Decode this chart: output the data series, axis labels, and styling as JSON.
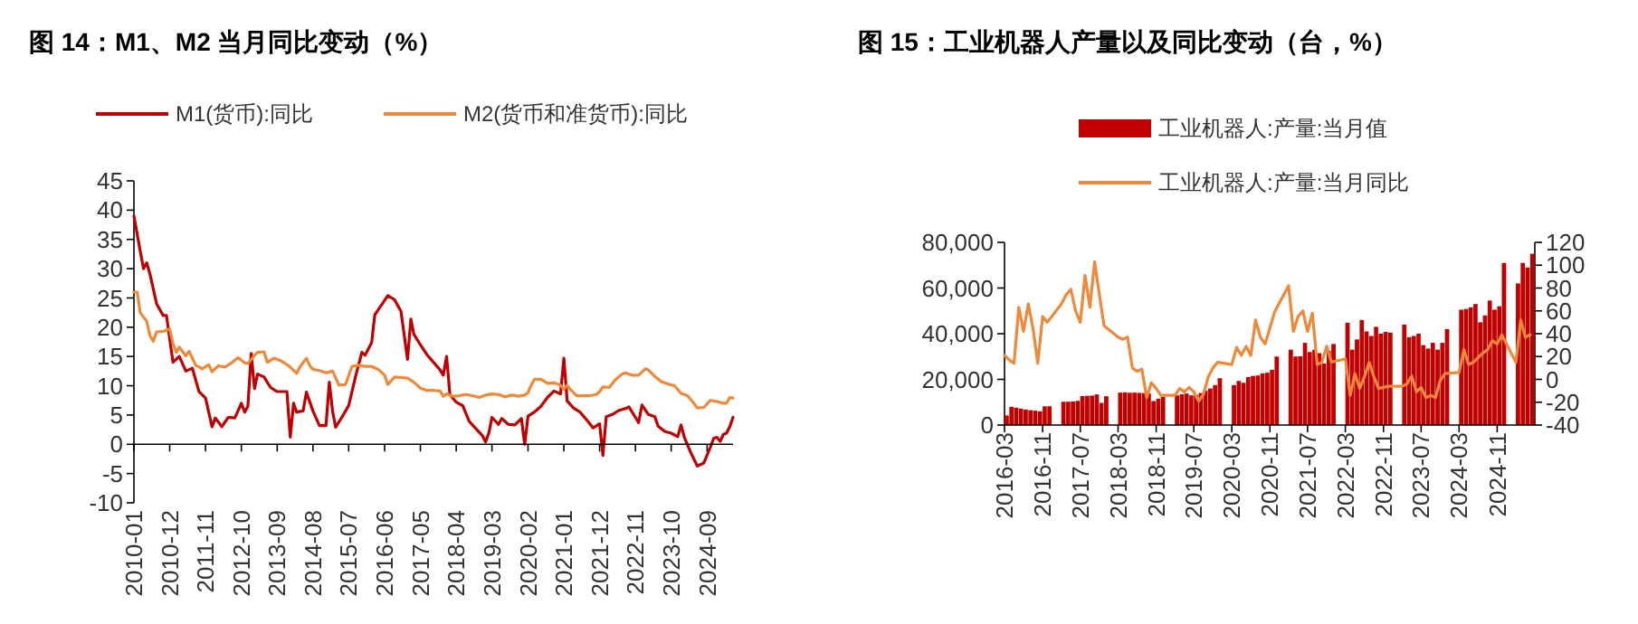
{
  "chart_data": [
    {
      "type": "line",
      "title": "图 14：M1、M2 当月同比变动（%）",
      "legend": "top",
      "xlim": [
        "2010-01",
        "2025-05"
      ],
      "xticks": [
        "2010-01",
        "2010-12",
        "2011-11",
        "2012-10",
        "2013-09",
        "2014-08",
        "2015-07",
        "2016-06",
        "2017-05",
        "2018-04",
        "2019-03",
        "2020-02",
        "2021-01",
        "2021-12",
        "2022-11",
        "2023-10",
        "2024-09"
      ],
      "ylim": [
        -10,
        45
      ],
      "yticks": [
        -10,
        -5,
        0,
        5,
        10,
        15,
        20,
        25,
        30,
        35,
        40,
        45
      ],
      "series": [
        {
          "name": "M1(货币):同比",
          "color": "#c00000",
          "x": [
            "2010-01",
            "2010-03",
            "2010-04",
            "2010-05",
            "2010-06",
            "2010-08",
            "2010-10",
            "2010-11",
            "2011-01",
            "2011-03",
            "2011-05",
            "2011-07",
            "2011-09",
            "2011-11",
            "2012-01",
            "2012-02",
            "2012-04",
            "2012-06",
            "2012-08",
            "2012-10",
            "2012-11",
            "2012-12",
            "2013-01",
            "2013-02",
            "2013-03",
            "2013-05",
            "2013-07",
            "2013-09",
            "2013-10",
            "2013-12",
            "2014-01",
            "2014-02",
            "2014-03",
            "2014-05",
            "2014-06",
            "2014-08",
            "2014-10",
            "2014-12",
            "2015-01",
            "2015-02",
            "2015-03",
            "2015-05",
            "2015-07",
            "2015-09",
            "2015-11",
            "2015-12",
            "2016-02",
            "2016-03",
            "2016-06",
            "2016-07",
            "2016-09",
            "2016-11",
            "2017-01",
            "2017-02",
            "2017-03",
            "2017-05",
            "2017-07",
            "2017-09",
            "2017-11",
            "2017-12",
            "2018-01",
            "2018-02",
            "2018-04",
            "2018-06",
            "2018-08",
            "2018-10",
            "2018-12",
            "2019-01",
            "2019-02",
            "2019-03",
            "2019-05",
            "2019-06",
            "2019-08",
            "2019-10",
            "2019-12",
            "2020-01",
            "2020-02",
            "2020-04",
            "2020-06",
            "2020-08",
            "2020-10",
            "2020-12",
            "2021-01",
            "2021-02",
            "2021-04",
            "2021-06",
            "2021-08",
            "2021-10",
            "2021-12",
            "2022-01",
            "2022-02",
            "2022-04",
            "2022-06",
            "2022-08",
            "2022-09",
            "2022-11",
            "2022-12",
            "2023-01",
            "2023-03",
            "2023-05",
            "2023-06",
            "2023-08",
            "2023-10",
            "2023-12",
            "2024-01",
            "2024-02",
            "2024-04",
            "2024-06",
            "2024-08",
            "2024-10",
            "2024-11",
            "2024-12",
            "2025-01",
            "2025-02",
            "2025-03",
            "2025-04",
            "2025-05"
          ],
          "values": [
            39,
            33,
            30,
            31,
            29,
            24,
            22,
            22,
            14,
            15,
            12.5,
            13,
            9,
            7.9,
            3,
            4.5,
            3,
            4.6,
            4.5,
            7,
            5.5,
            6.5,
            15.5,
            9.5,
            12,
            11.5,
            9.7,
            9,
            9,
            9,
            1.2,
            7,
            5.5,
            5.7,
            8.9,
            5.7,
            3.2,
            3.2,
            10.6,
            5.6,
            2.9,
            4.7,
            6.6,
            11.4,
            15.7,
            15.2,
            17.4,
            22.1,
            24.6,
            25.4,
            24.7,
            22.7,
            14.5,
            21.4,
            18.8,
            17,
            15.3,
            14,
            12.7,
            11.8,
            15,
            8.5,
            7.2,
            6.6,
            3.9,
            2.7,
            1.5,
            0.4,
            2,
            4.6,
            3.4,
            4.4,
            3.4,
            3.3,
            4.4,
            0,
            4.8,
            5.5,
            6.5,
            8,
            9.1,
            8.6,
            14.7,
            7.4,
            6.2,
            5.5,
            4.2,
            2.8,
            3.5,
            -1.9,
            4.7,
            5.1,
            5.8,
            6.1,
            6.4,
            4.6,
            3.7,
            6.7,
            5.1,
            4.7,
            3.1,
            2.2,
            1.9,
            1.3,
            3.3,
            1.2,
            -1.4,
            -3.7,
            -3.2,
            -0.5,
            1,
            1.2,
            0.5,
            1.7,
            1.9,
            3,
            4.6
          ]
        },
        {
          "name": "M2(货币和准货币):同比",
          "color": "#f0883a",
          "x": [
            "2010-01",
            "2010-02",
            "2010-03",
            "2010-05",
            "2010-06",
            "2010-07",
            "2010-08",
            "2010-10",
            "2010-11",
            "2010-12",
            "2011-01",
            "2011-02",
            "2011-03",
            "2011-05",
            "2011-06",
            "2011-08",
            "2011-10",
            "2011-12",
            "2012-01",
            "2012-03",
            "2012-05",
            "2012-07",
            "2012-09",
            "2012-11",
            "2012-12",
            "2013-02",
            "2013-03",
            "2013-05",
            "2013-06",
            "2013-08",
            "2013-10",
            "2013-12",
            "2014-01",
            "2014-03",
            "2014-04",
            "2014-06",
            "2014-07",
            "2014-08",
            "2014-10",
            "2014-12",
            "2015-02",
            "2015-04",
            "2015-06",
            "2015-08",
            "2015-10",
            "2015-12",
            "2016-02",
            "2016-04",
            "2016-06",
            "2016-07",
            "2016-09",
            "2016-11",
            "2017-01",
            "2017-03",
            "2017-05",
            "2017-07",
            "2017-09",
            "2017-11",
            "2017-12",
            "2018-01",
            "2018-03",
            "2018-05",
            "2018-07",
            "2018-09",
            "2018-11",
            "2019-01",
            "2019-03",
            "2019-05",
            "2019-07",
            "2019-09",
            "2019-11",
            "2020-01",
            "2020-02",
            "2020-03",
            "2020-04",
            "2020-06",
            "2020-08",
            "2020-10",
            "2020-12",
            "2021-01",
            "2021-02",
            "2021-03",
            "2021-05",
            "2021-07",
            "2021-09",
            "2021-11",
            "2021-12",
            "2022-01",
            "2022-03",
            "2022-05",
            "2022-07",
            "2022-08",
            "2022-10",
            "2022-12",
            "2023-02",
            "2023-03",
            "2023-05",
            "2023-07",
            "2023-09",
            "2023-11",
            "2024-01",
            "2024-03",
            "2024-05",
            "2024-06",
            "2024-08",
            "2024-10",
            "2024-12",
            "2025-02",
            "2025-03",
            "2025-04",
            "2025-05"
          ],
          "values": [
            26,
            26,
            22.5,
            21,
            18.5,
            17.6,
            19.2,
            19.3,
            19.5,
            19.7,
            17.2,
            15.7,
            16.6,
            15.1,
            15.9,
            13.5,
            12.9,
            13.6,
            12.4,
            13.4,
            13.2,
            13.9,
            14.8,
            13.9,
            13.8,
            15.2,
            15.7,
            15.8,
            14,
            14.7,
            14.3,
            13.6,
            13.2,
            12.1,
            13.2,
            14.7,
            13.5,
            12.8,
            12.6,
            12.2,
            12.5,
            10.1,
            10.2,
            13.3,
            13.5,
            13.3,
            13.3,
            12.8,
            11.8,
            10.2,
            11.5,
            11.4,
            11.3,
            10.6,
            9.6,
            9.2,
            9.2,
            9.1,
            8.2,
            8.6,
            8.2,
            8.3,
            8.5,
            8.3,
            8,
            8.4,
            8.6,
            8.5,
            8.1,
            8.4,
            8.2,
            8.4,
            8.8,
            10.1,
            11.1,
            11.1,
            10.4,
            10.5,
            10.1,
            9.4,
            10.1,
            9.4,
            8.3,
            8.3,
            8.3,
            8.5,
            9,
            9.8,
            9.7,
            11.1,
            12,
            12.2,
            11.8,
            11.8,
            12.9,
            12.7,
            11.6,
            10.7,
            10.3,
            10,
            8.7,
            8.3,
            7,
            6.2,
            6.3,
            7.5,
            7.3,
            7,
            7,
            8,
            7.9
          ]
        }
      ]
    },
    {
      "type": "bar",
      "title": "图 15：工业机器人产量以及同比变动（台，%）",
      "legend": "top",
      "xlim": [
        "2016-03",
        "2025-07"
      ],
      "xticks": [
        "2016-03",
        "2016-11",
        "2017-07",
        "2018-03",
        "2018-11",
        "2019-07",
        "2020-03",
        "2020-11",
        "2021-07",
        "2022-03",
        "2022-11",
        "2023-07",
        "2024-03",
        "2024-11"
      ],
      "ylim": [
        0,
        80000
      ],
      "yticks": [
        0,
        {
          "value": 20000,
          "label": "20,000"
        },
        {
          "value": 40000,
          "label": "40,000"
        },
        {
          "value": 60000,
          "label": "60,000"
        },
        {
          "value": 80000,
          "label": "80,000"
        }
      ],
      "y2lim": [
        -40,
        120
      ],
      "y2ticks": [
        -40,
        -20,
        0,
        20,
        40,
        60,
        80,
        100,
        120
      ],
      "series": [
        {
          "name": "工业机器人:产量:当月值",
          "color": "#c00000",
          "x": [
            "2016-03",
            "2016-04",
            "2016-05",
            "2016-06",
            "2016-07",
            "2016-08",
            "2016-09",
            "2016-10",
            "2016-11",
            "2016-12",
            "2017-03",
            "2017-04",
            "2017-05",
            "2017-06",
            "2017-07",
            "2017-08",
            "2017-09",
            "2017-10",
            "2017-11",
            "2017-12",
            "2018-03",
            "2018-04",
            "2018-05",
            "2018-06",
            "2018-07",
            "2018-08",
            "2018-09",
            "2018-10",
            "2018-11",
            "2018-12",
            "2019-03",
            "2019-04",
            "2019-05",
            "2019-06",
            "2019-07",
            "2019-08",
            "2019-09",
            "2019-10",
            "2019-11",
            "2019-12",
            "2020-03",
            "2020-04",
            "2020-05",
            "2020-06",
            "2020-07",
            "2020-08",
            "2020-09",
            "2020-10",
            "2020-11",
            "2020-12",
            "2021-03",
            "2021-04",
            "2021-05",
            "2021-06",
            "2021-07",
            "2021-08",
            "2021-09",
            "2021-10",
            "2021-11",
            "2021-12",
            "2022-03",
            "2022-04",
            "2022-05",
            "2022-06",
            "2022-07",
            "2022-08",
            "2022-09",
            "2022-10",
            "2022-11",
            "2022-12",
            "2023-03",
            "2023-04",
            "2023-05",
            "2023-06",
            "2023-07",
            "2023-08",
            "2023-09",
            "2023-10",
            "2023-11",
            "2023-12",
            "2024-03",
            "2024-04",
            "2024-05",
            "2024-06",
            "2024-07",
            "2024-08",
            "2024-09",
            "2024-10",
            "2024-11",
            "2024-12",
            "2025-03",
            "2025-04",
            "2025-05",
            "2025-06"
          ],
          "values": [
            4200,
            8000,
            7600,
            7200,
            6800,
            6500,
            6300,
            6000,
            8200,
            8200,
            10200,
            10200,
            10300,
            10600,
            12700,
            12800,
            12900,
            13400,
            9700,
            12600,
            14200,
            14300,
            14100,
            14200,
            14100,
            14000,
            13800,
            10500,
            11500,
            12300,
            13000,
            13500,
            13800,
            13000,
            13200,
            14000,
            15000,
            16000,
            17500,
            20500,
            17500,
            19300,
            18500,
            21000,
            21500,
            21700,
            22600,
            22900,
            24200,
            30000,
            33000,
            30000,
            30100,
            36000,
            32000,
            33000,
            31500,
            27000,
            32500,
            35500,
            44800,
            33000,
            37500,
            46000,
            41000,
            39000,
            43000,
            40000,
            40800,
            40500,
            44000,
            38500,
            39000,
            40000,
            35000,
            33500,
            36000,
            33000,
            36000,
            42000,
            50500,
            50800,
            51500,
            53000,
            45000,
            48000,
            54500,
            50500,
            52000,
            71000,
            62000,
            71000,
            69000,
            75000
          ]
        },
        {
          "type": "line",
          "axis": "y2",
          "name": "工业机器人:产量:当月同比",
          "color": "#f0883a",
          "x": [
            "2016-03",
            "2016-04",
            "2016-05",
            "2016-06",
            "2016-07",
            "2016-08",
            "2016-09",
            "2016-10",
            "2016-11",
            "2016-12",
            "2017-03",
            "2017-04",
            "2017-05",
            "2017-06",
            "2017-07",
            "2017-08",
            "2017-09",
            "2017-10",
            "2017-11",
            "2017-12",
            "2018-03",
            "2018-04",
            "2018-05",
            "2018-06",
            "2018-07",
            "2018-08",
            "2018-09",
            "2018-10",
            "2018-11",
            "2018-12",
            "2019-03",
            "2019-04",
            "2019-05",
            "2019-06",
            "2019-07",
            "2019-08",
            "2019-09",
            "2019-10",
            "2019-11",
            "2019-12",
            "2020-03",
            "2020-04",
            "2020-05",
            "2020-06",
            "2020-07",
            "2020-08",
            "2020-09",
            "2020-10",
            "2020-11",
            "2020-12",
            "2021-03",
            "2021-04",
            "2021-05",
            "2021-06",
            "2021-07",
            "2021-08",
            "2021-09",
            "2021-10",
            "2021-11",
            "2021-12",
            "2022-03",
            "2022-04",
            "2022-05",
            "2022-06",
            "2022-07",
            "2022-08",
            "2022-09",
            "2022-10",
            "2022-11",
            "2022-12",
            "2023-03",
            "2023-04",
            "2023-05",
            "2023-06",
            "2023-07",
            "2023-08",
            "2023-09",
            "2023-10",
            "2023-11",
            "2023-12",
            "2024-03",
            "2024-04",
            "2024-05",
            "2024-06",
            "2024-07",
            "2024-08",
            "2024-09",
            "2024-10",
            "2024-11",
            "2024-12",
            "2025-03",
            "2025-04",
            "2025-05",
            "2025-06"
          ],
          "values": [
            21,
            17,
            14,
            63,
            42,
            66,
            44,
            14,
            55,
            50,
            66,
            74,
            79,
            60,
            50,
            91,
            63,
            103,
            74,
            47,
            37,
            35,
            37,
            10,
            7,
            9,
            -16,
            -3,
            -8,
            -14,
            -14,
            -8,
            -11,
            -7,
            -11,
            -19,
            -13,
            2,
            10,
            15,
            13,
            28,
            21,
            29,
            21,
            52,
            37,
            31,
            45,
            59,
            82,
            42,
            55,
            60,
            42,
            58,
            13,
            15,
            29,
            15,
            18,
            -14,
            5,
            -8,
            2,
            15,
            2,
            -8,
            -7,
            -6,
            -6,
            -4,
            3,
            -11,
            -7,
            -16,
            -14,
            -16,
            -1,
            5,
            6,
            26,
            13,
            15,
            19,
            23,
            26,
            34,
            31,
            39,
            15,
            52,
            37,
            39
          ]
        }
      ]
    }
  ]
}
